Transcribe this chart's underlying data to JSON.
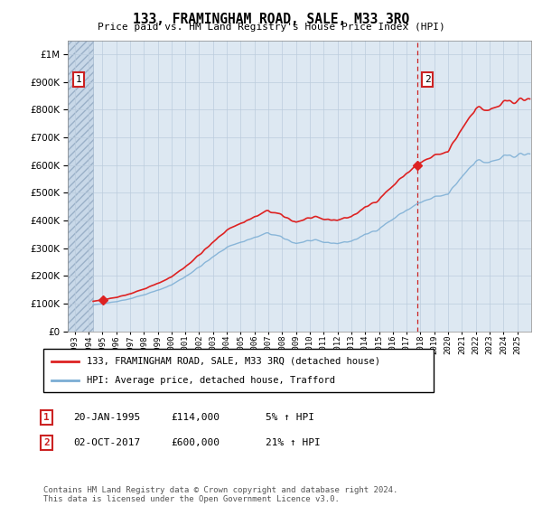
{
  "title": "133, FRAMINGHAM ROAD, SALE, M33 3RQ",
  "subtitle": "Price paid vs. HM Land Registry's House Price Index (HPI)",
  "ytick_values": [
    0,
    100000,
    200000,
    300000,
    400000,
    500000,
    600000,
    700000,
    800000,
    900000,
    1000000
  ],
  "ylim": [
    0,
    1050000
  ],
  "xlim_start": 1992.5,
  "xlim_end": 2026.0,
  "hatch_end": 1994.3,
  "sale1_x": 1995.05,
  "sale1_y": 114000,
  "sale2_x": 2017.75,
  "sale2_y": 600000,
  "sale1_date": "20-JAN-1995",
  "sale1_price": "£114,000",
  "sale1_hpi": "5% ↑ HPI",
  "sale2_date": "02-OCT-2017",
  "sale2_price": "£600,000",
  "sale2_hpi": "21% ↑ HPI",
  "legend_line1": "133, FRAMINGHAM ROAD, SALE, M33 3RQ (detached house)",
  "legend_line2": "HPI: Average price, detached house, Trafford",
  "footer": "Contains HM Land Registry data © Crown copyright and database right 2024.\nThis data is licensed under the Open Government Licence v3.0.",
  "grid_color": "#bbccdd",
  "background_plot": "#dde8f2",
  "line_red": "#dd2222",
  "line_blue": "#7aadd4",
  "dashed_red": "#cc2222",
  "annotation_box_color": "#cc2222",
  "hatch_face": "#c8d8e8",
  "hatch_edge": "#9ab0c8"
}
